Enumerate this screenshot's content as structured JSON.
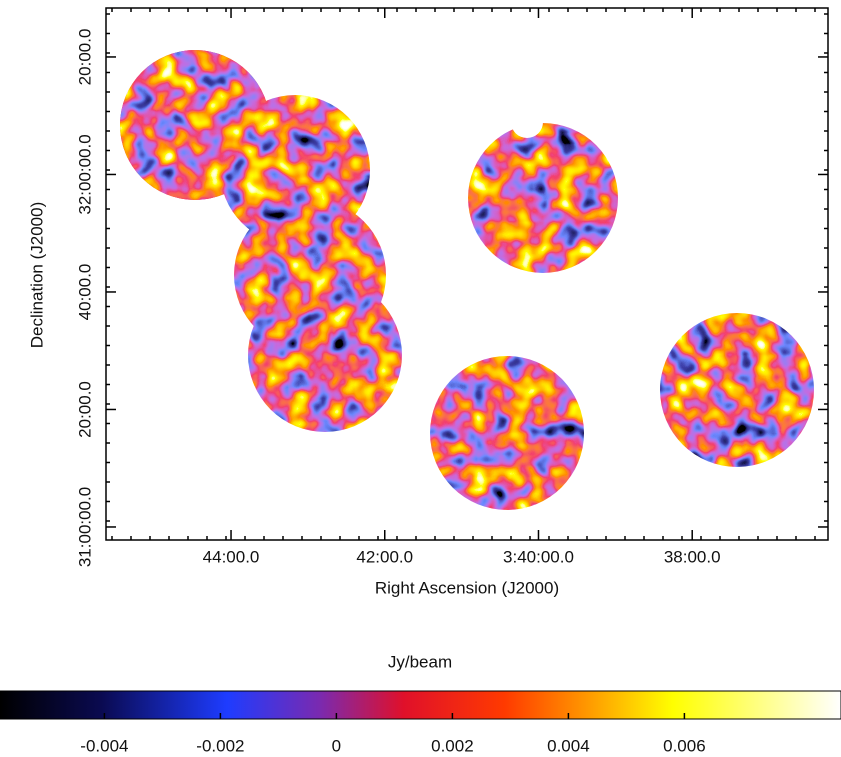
{
  "chart_data": {
    "type": "map",
    "xlabel": "Right Ascension (J2000)",
    "ylabel": "Declination (J2000)",
    "xlim": [
      13537.6,
      12974
    ],
    "xticks": [
      {
        "value": 13440,
        "label": "44:00.0"
      },
      {
        "value": 13320,
        "label": "42:00.0"
      },
      {
        "value": 13200,
        "label": "3:40:00.0"
      },
      {
        "value": 13080,
        "label": "38:00.0"
      }
    ],
    "ylim": [
      111467,
      116900
    ],
    "yticks": [
      {
        "value": 111600,
        "label": "31:00:00.0"
      },
      {
        "value": 112800,
        "label": "20:00.0"
      },
      {
        "value": 114000,
        "label": "40:00.0"
      },
      {
        "value": 115200,
        "label": "32:00:00.0"
      },
      {
        "value": 116400,
        "label": "20:00.0"
      }
    ],
    "colorbar": {
      "label": "Jy/beam",
      "lim": [
        -0.0058,
        0.0087
      ],
      "ticks": [
        -0.004,
        -0.002,
        0,
        0.002,
        0.004,
        0.006
      ]
    }
  }
}
